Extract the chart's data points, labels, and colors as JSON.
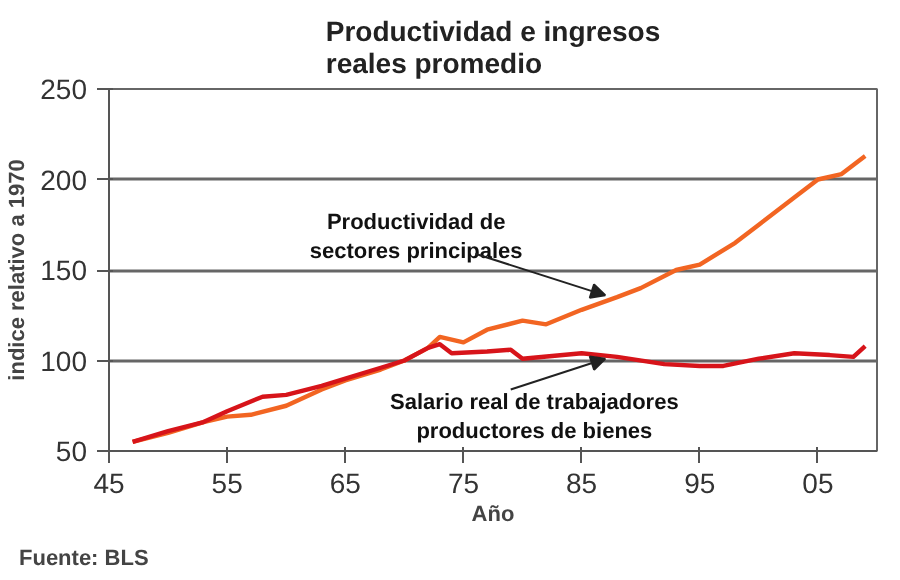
{
  "chart_data": {
    "type": "line",
    "title": "Productividad e ingresos\nreales promedio",
    "xlabel": "Año",
    "ylabel": "indice relativo a 1970",
    "series": [
      {
        "color": "#f26522",
        "x": [
          1947,
          1950,
          1953,
          1955,
          1957,
          1960,
          1963,
          1965,
          1968,
          1970,
          1972,
          1973,
          1975,
          1977,
          1980,
          1982,
          1985,
          1988,
          1990,
          1993,
          1995,
          1998,
          2000,
          2003,
          2005,
          2007,
          2009
        ],
        "values": [
          55,
          60,
          66,
          69,
          70,
          75,
          84,
          89,
          95,
          100,
          107,
          113,
          110,
          117,
          122,
          120,
          128,
          135,
          140,
          150,
          153,
          165,
          175,
          190,
          200,
          203,
          213
        ]
      },
      {
        "color": "#d7141a",
        "x": [
          1947,
          1950,
          1953,
          1955,
          1958,
          1960,
          1963,
          1965,
          1968,
          1970,
          1972,
          1973,
          1974,
          1977,
          1979,
          1980,
          1985,
          1988,
          1992,
          1995,
          1997,
          2000,
          2003,
          2006,
          2008,
          2009
        ],
        "values": [
          55,
          61,
          66,
          72,
          80,
          81,
          86,
          90,
          96,
          100,
          107,
          109,
          104,
          105,
          106,
          101,
          104,
          102,
          98,
          97,
          97,
          101,
          104,
          103,
          102,
          108
        ]
      }
    ],
    "xlim": [
      1945,
      2010
    ],
    "xticks": [
      {
        "value": 1945,
        "label": "45"
      },
      {
        "value": 1955,
        "label": "55"
      },
      {
        "value": 1965,
        "label": "65"
      },
      {
        "value": 1975,
        "label": "75"
      },
      {
        "value": 1985,
        "label": "85"
      },
      {
        "value": 1995,
        "label": "95"
      },
      {
        "value": 2005,
        "label": "05"
      }
    ],
    "ylim": [
      50,
      250
    ],
    "yticks": [
      50,
      100,
      150,
      200,
      250
    ],
    "grid": "y",
    "marker": "none",
    "line_style": "solid",
    "annotations": [
      {
        "text": "Productividad de\nsectores principales",
        "x": 1987,
        "y": 133
      },
      {
        "text": "Salario real de trabajadores\nproductores de bienes",
        "x": 1987,
        "y": 103
      },
      "Fuente: BLS"
    ]
  }
}
